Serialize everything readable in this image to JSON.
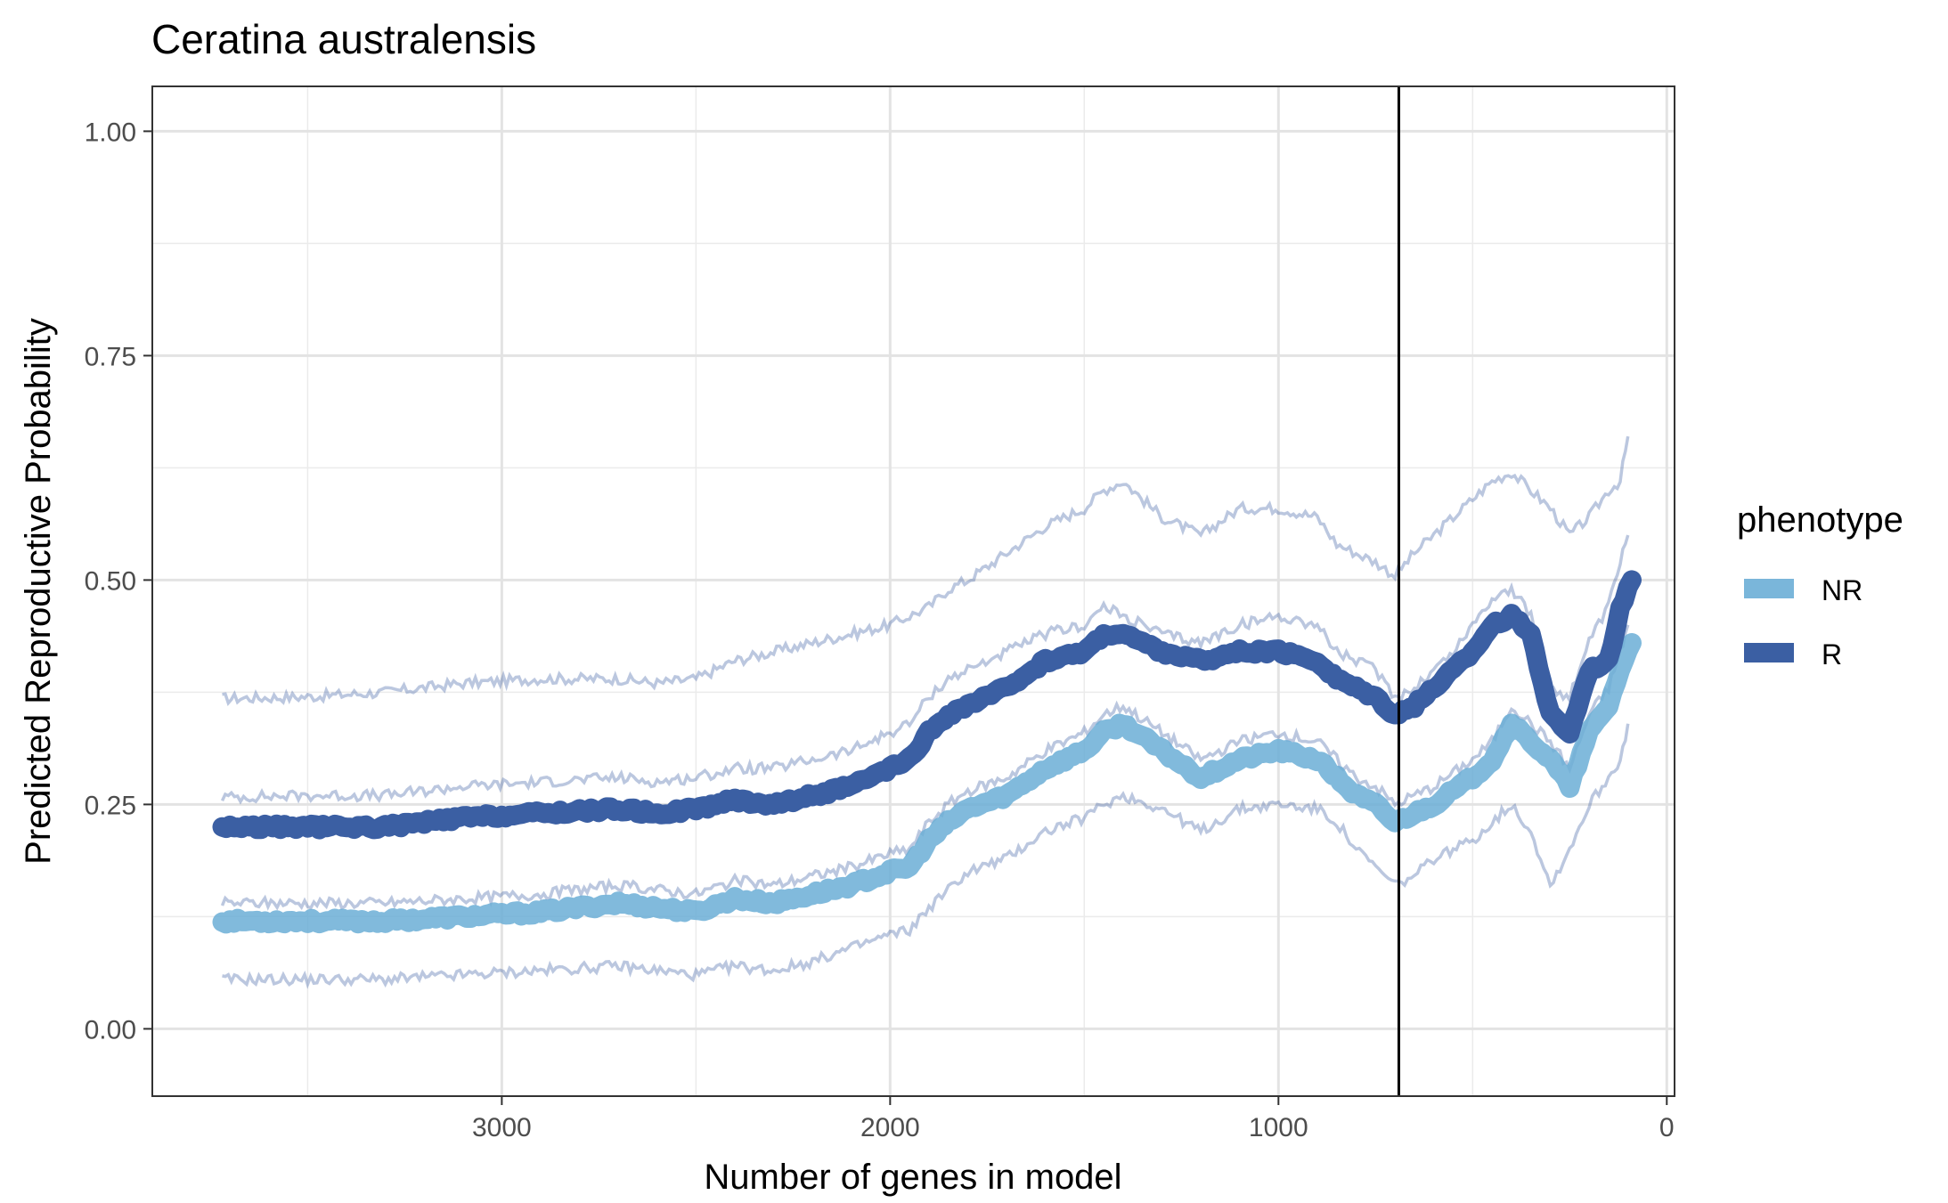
{
  "chart_data": {
    "type": "line",
    "title": "Ceratina australensis",
    "xlabel": "Number of genes in model",
    "ylabel": "Predicted Reproductive Probability",
    "x_reversed": true,
    "xlim": [
      3900,
      -20
    ],
    "ylim": [
      -0.075,
      1.05
    ],
    "x_ticks": [
      3000,
      2000,
      1000,
      0
    ],
    "x_tick_labels": [
      "3000",
      "2000",
      "1000",
      "0"
    ],
    "y_ticks": [
      0,
      0.25,
      0.5,
      0.75,
      1
    ],
    "y_tick_labels": [
      "0.00",
      "0.25",
      "0.50",
      "0.75",
      "1.00"
    ],
    "grid": true,
    "vline": 690,
    "legend": {
      "title": "phenotype",
      "position": "right"
    },
    "series": [
      {
        "name": "NR",
        "color": "#6baed6",
        "x": [
          3720,
          3500,
          3300,
          3100,
          2900,
          2700,
          2600,
          2500,
          2400,
          2300,
          2200,
          2100,
          2000,
          1950,
          1900,
          1850,
          1800,
          1700,
          1600,
          1500,
          1450,
          1400,
          1300,
          1200,
          1100,
          1000,
          900,
          850,
          800,
          750,
          700,
          650,
          600,
          550,
          500,
          450,
          400,
          350,
          300,
          250,
          200,
          150,
          120,
          90
        ],
        "values": [
          0.12,
          0.12,
          0.12,
          0.125,
          0.13,
          0.14,
          0.135,
          0.13,
          0.145,
          0.14,
          0.15,
          0.16,
          0.175,
          0.18,
          0.21,
          0.23,
          0.245,
          0.26,
          0.29,
          0.31,
          0.33,
          0.34,
          0.31,
          0.28,
          0.3,
          0.31,
          0.3,
          0.28,
          0.26,
          0.25,
          0.23,
          0.24,
          0.25,
          0.265,
          0.28,
          0.3,
          0.34,
          0.32,
          0.3,
          0.27,
          0.33,
          0.36,
          0.4,
          0.43
        ]
      },
      {
        "name": "R",
        "color": "#3b5fa3",
        "x": [
          3720,
          3500,
          3300,
          3100,
          2900,
          2700,
          2600,
          2500,
          2400,
          2300,
          2200,
          2100,
          2000,
          1950,
          1900,
          1850,
          1800,
          1700,
          1600,
          1500,
          1450,
          1400,
          1300,
          1200,
          1100,
          1000,
          900,
          850,
          800,
          750,
          700,
          650,
          600,
          550,
          500,
          450,
          400,
          350,
          300,
          250,
          200,
          150,
          120,
          90
        ],
        "values": [
          0.225,
          0.225,
          0.225,
          0.235,
          0.24,
          0.245,
          0.24,
          0.245,
          0.255,
          0.25,
          0.26,
          0.27,
          0.29,
          0.3,
          0.33,
          0.35,
          0.36,
          0.38,
          0.41,
          0.42,
          0.44,
          0.44,
          0.42,
          0.41,
          0.42,
          0.42,
          0.41,
          0.39,
          0.38,
          0.37,
          0.35,
          0.36,
          0.38,
          0.4,
          0.42,
          0.45,
          0.46,
          0.44,
          0.35,
          0.33,
          0.4,
          0.41,
          0.47,
          0.5
        ]
      }
    ],
    "bands": [
      {
        "color": "#3b5fa3",
        "x": [
          3720,
          3500,
          3300,
          3100,
          2900,
          2700,
          2600,
          2500,
          2400,
          2300,
          2200,
          2100,
          2000,
          1950,
          1900,
          1850,
          1800,
          1700,
          1600,
          1500,
          1450,
          1400,
          1300,
          1200,
          1100,
          1000,
          900,
          850,
          800,
          750,
          700,
          650,
          600,
          550,
          500,
          450,
          400,
          350,
          300,
          250,
          200,
          150,
          120,
          100
        ],
        "upper": [
          0.368,
          0.37,
          0.375,
          0.385,
          0.39,
          0.39,
          0.385,
          0.39,
          0.41,
          0.42,
          0.43,
          0.44,
          0.45,
          0.46,
          0.47,
          0.49,
          0.5,
          0.53,
          0.56,
          0.58,
          0.6,
          0.61,
          0.57,
          0.55,
          0.58,
          0.58,
          0.57,
          0.54,
          0.53,
          0.52,
          0.505,
          0.53,
          0.55,
          0.57,
          0.59,
          0.61,
          0.62,
          0.6,
          0.58,
          0.55,
          0.57,
          0.6,
          0.61,
          0.66
        ],
        "lower": [
          0.055,
          0.055,
          0.055,
          0.06,
          0.065,
          0.07,
          0.065,
          0.06,
          0.07,
          0.065,
          0.075,
          0.09,
          0.105,
          0.11,
          0.135,
          0.155,
          0.175,
          0.19,
          0.22,
          0.235,
          0.25,
          0.26,
          0.245,
          0.22,
          0.245,
          0.25,
          0.245,
          0.23,
          0.2,
          0.18,
          0.16,
          0.17,
          0.19,
          0.2,
          0.21,
          0.23,
          0.25,
          0.22,
          0.16,
          0.2,
          0.25,
          0.28,
          0.3,
          0.34
        ]
      },
      {
        "color": "#3b5fa3",
        "x": [
          3720,
          3500,
          3300,
          3100,
          2900,
          2700,
          2600,
          2500,
          2400,
          2300,
          2200,
          2100,
          2000,
          1950,
          1900,
          1850,
          1800,
          1700,
          1600,
          1500,
          1450,
          1400,
          1300,
          1200,
          1100,
          1000,
          900,
          850,
          800,
          750,
          700,
          650,
          600,
          550,
          500,
          450,
          400,
          350,
          300,
          250,
          200,
          150,
          120,
          100
        ],
        "upper": [
          0.258,
          0.26,
          0.26,
          0.27,
          0.275,
          0.28,
          0.275,
          0.28,
          0.29,
          0.29,
          0.3,
          0.31,
          0.33,
          0.34,
          0.37,
          0.39,
          0.4,
          0.42,
          0.44,
          0.45,
          0.47,
          0.46,
          0.44,
          0.43,
          0.45,
          0.46,
          0.45,
          0.42,
          0.41,
          0.4,
          0.37,
          0.38,
          0.4,
          0.42,
          0.45,
          0.48,
          0.49,
          0.46,
          0.38,
          0.37,
          0.43,
          0.47,
          0.52,
          0.55
        ],
        "lower": [
          0.14,
          0.14,
          0.14,
          0.145,
          0.15,
          0.16,
          0.155,
          0.15,
          0.165,
          0.16,
          0.17,
          0.18,
          0.195,
          0.2,
          0.23,
          0.25,
          0.265,
          0.28,
          0.31,
          0.33,
          0.35,
          0.36,
          0.33,
          0.3,
          0.32,
          0.33,
          0.32,
          0.3,
          0.28,
          0.27,
          0.25,
          0.26,
          0.27,
          0.285,
          0.3,
          0.32,
          0.36,
          0.34,
          0.32,
          0.29,
          0.35,
          0.38,
          0.42,
          0.45
        ]
      }
    ]
  }
}
